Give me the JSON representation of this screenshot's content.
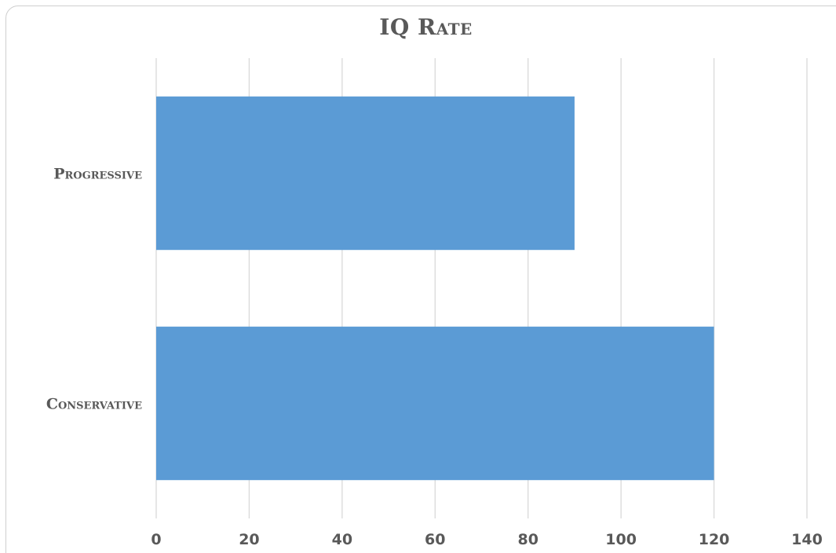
{
  "chart_data": {
    "type": "bar",
    "orientation": "horizontal",
    "title": "IQ Rate",
    "categories": [
      "Progressive",
      "Conservative"
    ],
    "values": [
      90,
      120
    ],
    "xlim": [
      0,
      140
    ],
    "xticks": [
      0,
      20,
      40,
      60,
      80,
      100,
      120,
      140
    ],
    "xlabel": "",
    "ylabel": "",
    "grid": true,
    "bar_color": "#5b9bd5",
    "legend": "none"
  }
}
